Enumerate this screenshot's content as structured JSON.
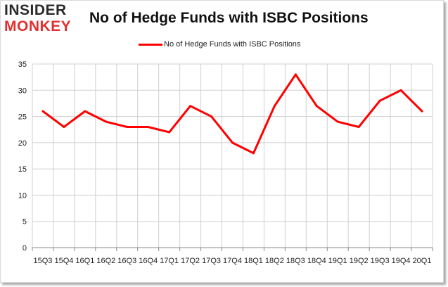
{
  "logo": {
    "line1": "INSIDER",
    "line2": "MONKEY"
  },
  "colors": {
    "series": "#ff0000",
    "grid": "#d0d0d0",
    "axis": "#888888",
    "logo_accent": "#e0302f"
  },
  "chart_data": {
    "type": "line",
    "title": "No of Hedge Funds with ISBC Positions",
    "xlabel": "",
    "ylabel": "",
    "legend_position": "top-center",
    "grid": true,
    "ylim": [
      0,
      35
    ],
    "yticks": [
      0,
      5,
      10,
      15,
      20,
      25,
      30,
      35
    ],
    "categories": [
      "15Q3",
      "15Q4",
      "16Q1",
      "16Q2",
      "16Q3",
      "16Q4",
      "17Q1",
      "17Q2",
      "17Q3",
      "17Q4",
      "18Q1",
      "18Q2",
      "18Q3",
      "18Q4",
      "19Q1",
      "19Q2",
      "19Q3",
      "19Q4",
      "20Q1"
    ],
    "series": [
      {
        "name": "No of Hedge Funds with ISBC Positions",
        "values": [
          26,
          23,
          26,
          24,
          23,
          23,
          22,
          27,
          25,
          20,
          18,
          27,
          33,
          27,
          24,
          23,
          28,
          30,
          26
        ]
      }
    ]
  }
}
